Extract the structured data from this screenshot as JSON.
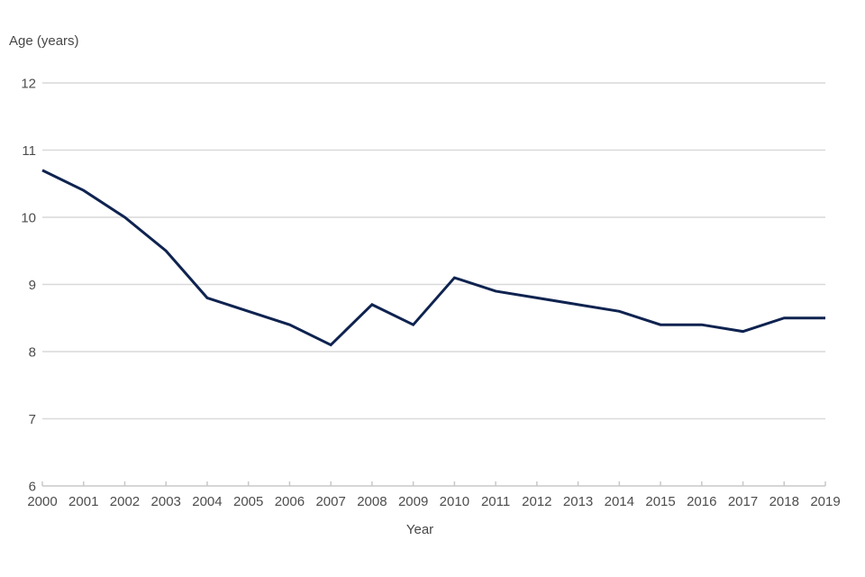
{
  "chart_data": {
    "type": "line",
    "title": "",
    "ylabel": "Age (years)",
    "xlabel": "Year",
    "categories": [
      2000,
      2001,
      2002,
      2003,
      2004,
      2005,
      2006,
      2007,
      2008,
      2009,
      2010,
      2011,
      2012,
      2013,
      2014,
      2015,
      2016,
      2017,
      2018,
      2019
    ],
    "series": [
      {
        "name": "Age (years)",
        "values": [
          10.7,
          10.4,
          10.0,
          9.5,
          8.8,
          8.6,
          8.4,
          8.1,
          8.7,
          8.4,
          9.1,
          8.9,
          8.8,
          8.7,
          8.6,
          8.4,
          8.4,
          8.3,
          8.5,
          8.5
        ]
      }
    ],
    "ylim": [
      6,
      12
    ],
    "yticks": [
      6,
      7,
      8,
      9,
      10,
      11,
      12
    ],
    "grid": "horizontal",
    "legend": "none",
    "colors": {
      "line": "#0f2350",
      "gridline": "#d9d9d9",
      "axis": "#c8c8c8",
      "tick_text": "#4d4d4f",
      "title_text": "#474749"
    }
  }
}
